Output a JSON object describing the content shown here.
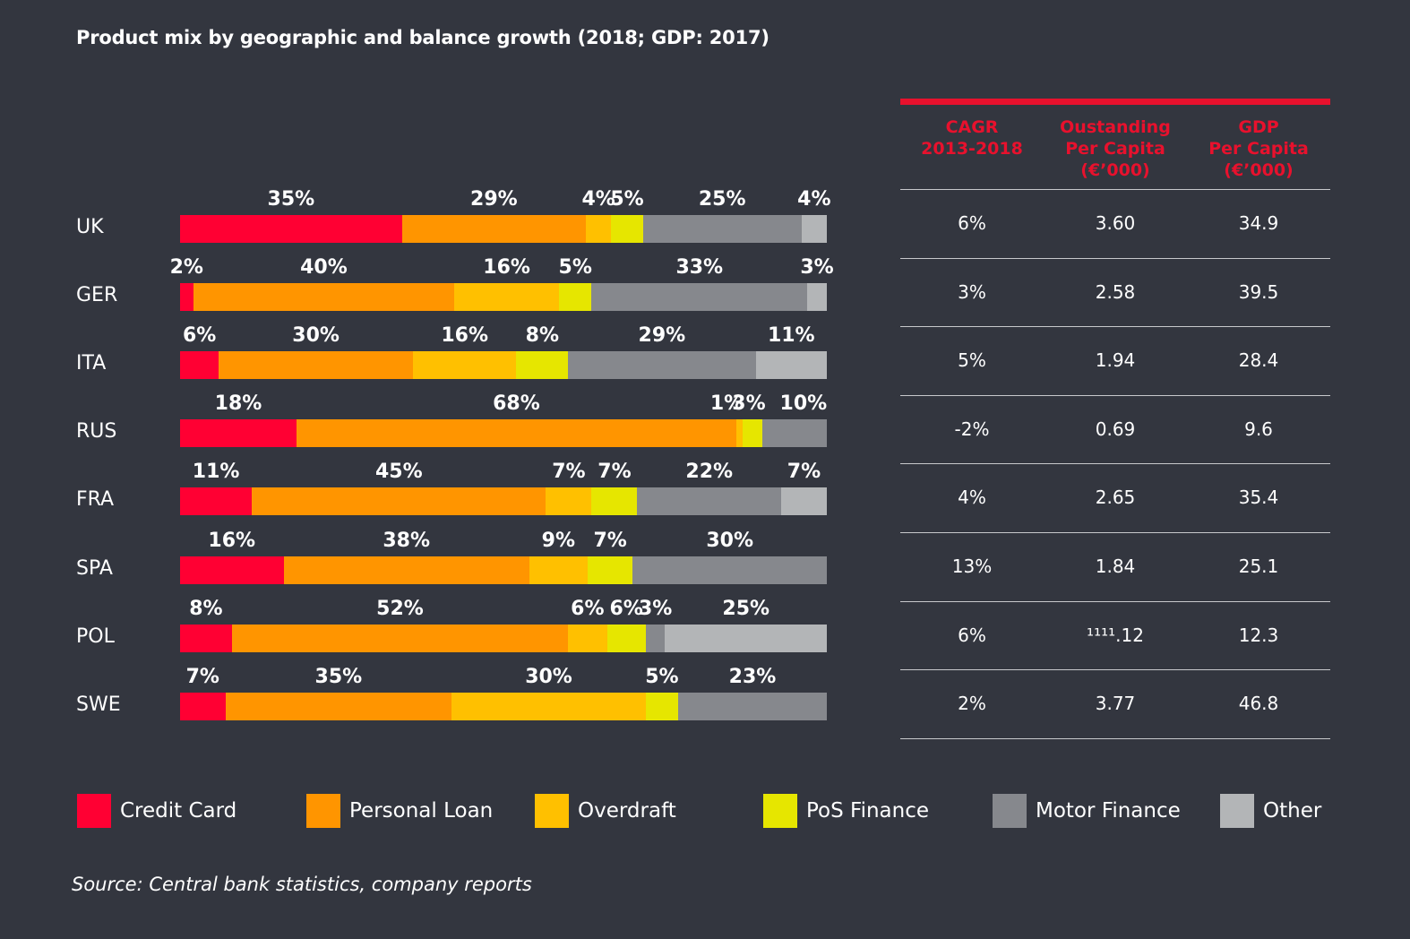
{
  "title": "Product mix by geographic and balance growth (2018; GDP: 2017)",
  "source": "Source: Central bank statistics, company reports",
  "colors": {
    "background": "#33363f",
    "accent_red": "#e8112d",
    "divider": "#c8c9cc"
  },
  "chart_data": {
    "type": "bar",
    "orientation": "horizontal",
    "stacked": true,
    "units": "%",
    "categories": [
      "UK",
      "GER",
      "ITA",
      "RUS",
      "FRA",
      "SPA",
      "POL",
      "SWE"
    ],
    "series": [
      {
        "name": "Credit Card",
        "color": "#ff0033",
        "values": [
          35,
          2,
          6,
          18,
          11,
          16,
          8,
          7
        ]
      },
      {
        "name": "Personal Loan",
        "color": "#ff9500",
        "values": [
          29,
          40,
          30,
          68,
          45,
          38,
          52,
          35
        ]
      },
      {
        "name": "Overdraft",
        "color": "#ffc000",
        "values": [
          4,
          16,
          16,
          1,
          7,
          9,
          6,
          30
        ]
      },
      {
        "name": "PoS Finance",
        "color": "#e6e600",
        "values": [
          5,
          5,
          8,
          3,
          7,
          7,
          6,
          5
        ]
      },
      {
        "name": "Motor Finance",
        "color": "#86888d",
        "values": [
          25,
          33,
          29,
          10,
          22,
          30,
          3,
          23
        ]
      },
      {
        "name": "Other",
        "color": "#b3b5b7",
        "values": [
          4,
          3,
          11,
          null,
          7,
          null,
          25,
          null
        ]
      }
    ],
    "legend_position": "bottom",
    "grid": false
  },
  "table": {
    "headers": [
      "CAGR\n2013-2018",
      "Oustanding\nPer Capita\n(€’000)",
      "GDP\nPer Capita\n(€’000)"
    ],
    "rows": [
      [
        "6%",
        "3.60",
        "34.9"
      ],
      [
        "3%",
        "2.58",
        "39.5"
      ],
      [
        "5%",
        "1.94",
        "28.4"
      ],
      [
        "-2%",
        "0.69",
        "9.6"
      ],
      [
        "4%",
        "2.65",
        "35.4"
      ],
      [
        "13%",
        "1.84",
        "25.1"
      ],
      [
        "6%",
        "¹¹¹¹.12",
        "12.3"
      ],
      [
        "2%",
        "3.77",
        "46.8"
      ]
    ]
  }
}
